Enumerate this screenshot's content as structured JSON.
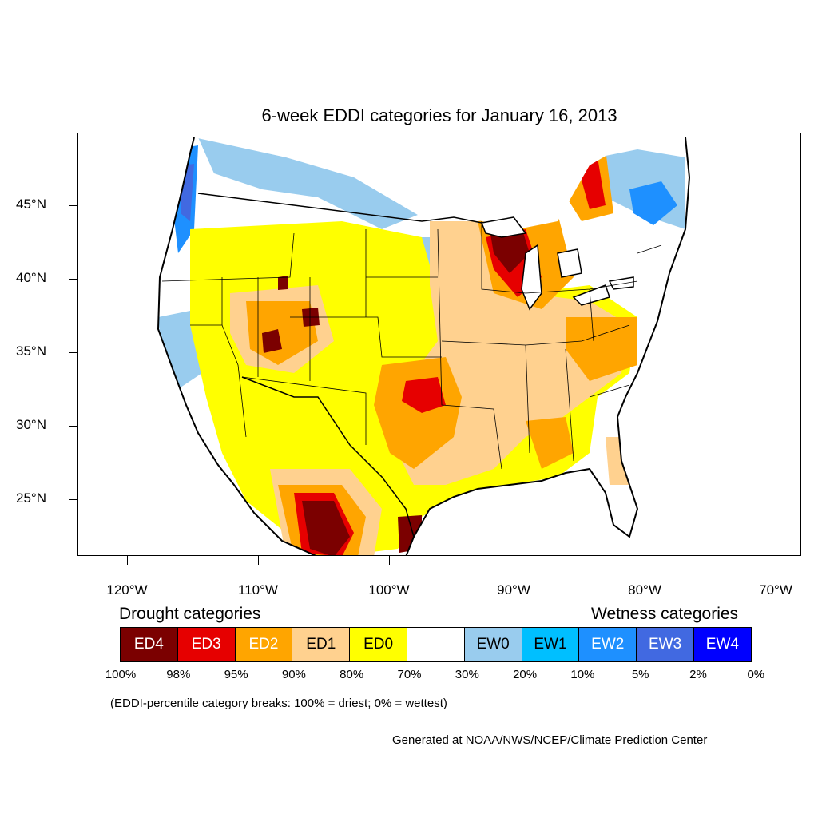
{
  "title": "6-week EDDI categories for January 16, 2013",
  "axes": {
    "lat_labels": [
      "45°N",
      "40°N",
      "35°N",
      "30°N",
      "25°N"
    ],
    "lon_labels": [
      "120°W",
      "110°W",
      "100°W",
      "90°W",
      "80°W",
      "70°W"
    ]
  },
  "legend": {
    "drought_heading": "Drought categories",
    "wetness_heading": "Wetness categories",
    "categories": [
      {
        "label": "ED4",
        "color": "#7b0000",
        "text_color": "#ffffff"
      },
      {
        "label": "ED3",
        "color": "#e60000",
        "text_color": "#ffffff"
      },
      {
        "label": "ED2",
        "color": "#ffa500",
        "text_color": "#ffffff"
      },
      {
        "label": "ED1",
        "color": "#ffd18f",
        "text_color": "#000000"
      },
      {
        "label": "ED0",
        "color": "#ffff00",
        "text_color": "#000000"
      },
      {
        "label": "",
        "color": "#ffffff",
        "text_color": "#000000"
      },
      {
        "label": "EW0",
        "color": "#99ccee",
        "text_color": "#000000"
      },
      {
        "label": "EW1",
        "color": "#00bfff",
        "text_color": "#000000"
      },
      {
        "label": "EW2",
        "color": "#1e90ff",
        "text_color": "#ffffff"
      },
      {
        "label": "EW3",
        "color": "#4169e1",
        "text_color": "#ffffff"
      },
      {
        "label": "EW4",
        "color": "#0000ff",
        "text_color": "#ffffff"
      }
    ],
    "breaks": [
      "100%",
      "98%",
      "95%",
      "90%",
      "80%",
      "70%",
      "30%",
      "20%",
      "10%",
      "5%",
      "2%",
      "0%"
    ]
  },
  "note": "(EDDI-percentile category breaks: 100% = driest; 0% = wettest)",
  "credit": "Generated at NOAA/NWS/NCEP/Climate Prediction Center"
}
